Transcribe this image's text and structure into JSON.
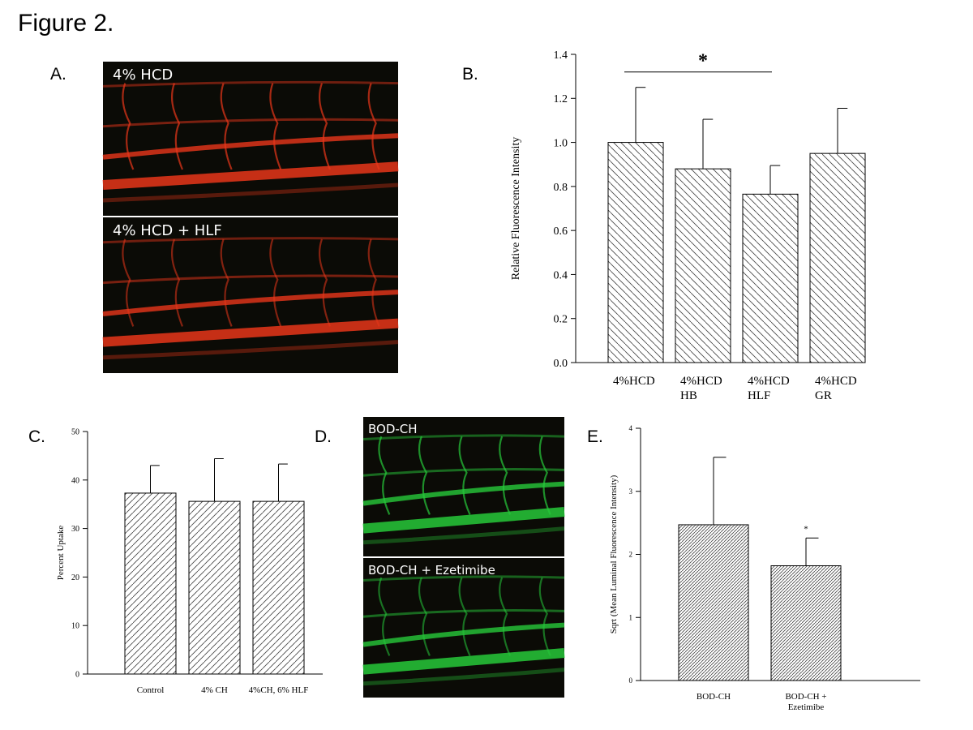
{
  "figure": {
    "title": "Figure 2.",
    "panel_letters": {
      "a": "A.",
      "b": "B.",
      "c": "C.",
      "d": "D.",
      "e": "E."
    }
  },
  "panel_a": {
    "images": [
      {
        "label": "4% HCD",
        "tint": "#e8361a"
      },
      {
        "label": "4% HCD + HLF",
        "tint": "#e8361a"
      }
    ]
  },
  "panel_d": {
    "images": [
      {
        "label": "BOD-CH",
        "tint": "#27c93a"
      },
      {
        "label": "BOD-CH + Ezetimibe",
        "tint": "#27c93a"
      }
    ]
  },
  "chart_data": [
    {
      "id": "B",
      "type": "bar",
      "categories": [
        "4%HCD\n",
        "4%HCD\nHB",
        "4%HCD\nHLF",
        "4%HCD\nGR"
      ],
      "values": [
        1.0,
        0.88,
        0.765,
        0.95
      ],
      "errors": [
        0.25,
        0.225,
        0.13,
        0.205
      ],
      "ylabel": "Relative Fluorescence Intensity",
      "ylim": [
        0,
        1.4
      ],
      "yticks": [
        0.0,
        0.2,
        0.4,
        0.6,
        0.8,
        1.0,
        1.2,
        1.4
      ],
      "ytick_labels": [
        "0.0",
        "0.2",
        "0.4",
        "0.6",
        "0.8",
        "1.0",
        "1.2",
        "1.4"
      ],
      "significance": {
        "from": 0,
        "to": 2,
        "y": 1.32,
        "label": "*"
      },
      "hatch": "backslash",
      "grid": false
    },
    {
      "id": "C",
      "type": "bar",
      "categories": [
        "Control",
        "4% CH",
        "4%CH, 6% HLF"
      ],
      "values": [
        37.3,
        35.6,
        35.6
      ],
      "errors": [
        5.7,
        8.8,
        7.7
      ],
      "ylabel": "Percent Uptake",
      "ylim": [
        0,
        50
      ],
      "yticks": [
        0,
        10,
        20,
        30,
        40,
        50
      ],
      "ytick_labels": [
        "0",
        "10",
        "20",
        "30",
        "40",
        "50"
      ],
      "hatch": "slash",
      "grid": false
    },
    {
      "id": "E",
      "type": "bar",
      "categories": [
        "BOD-CH",
        "BOD-CH +\nEzetimibe"
      ],
      "values": [
        2.47,
        1.82
      ],
      "errors": [
        1.07,
        0.44
      ],
      "ylabel": "Sqrt (Mean Luminal Fluorescence Intensity)",
      "ylim": [
        0,
        4
      ],
      "yticks": [
        0,
        1,
        2,
        3,
        4
      ],
      "ytick_labels": [
        "0",
        "1",
        "2",
        "3",
        "4"
      ],
      "bar_annotations": [
        "",
        "*"
      ],
      "hatch": "dense",
      "grid": false
    }
  ]
}
